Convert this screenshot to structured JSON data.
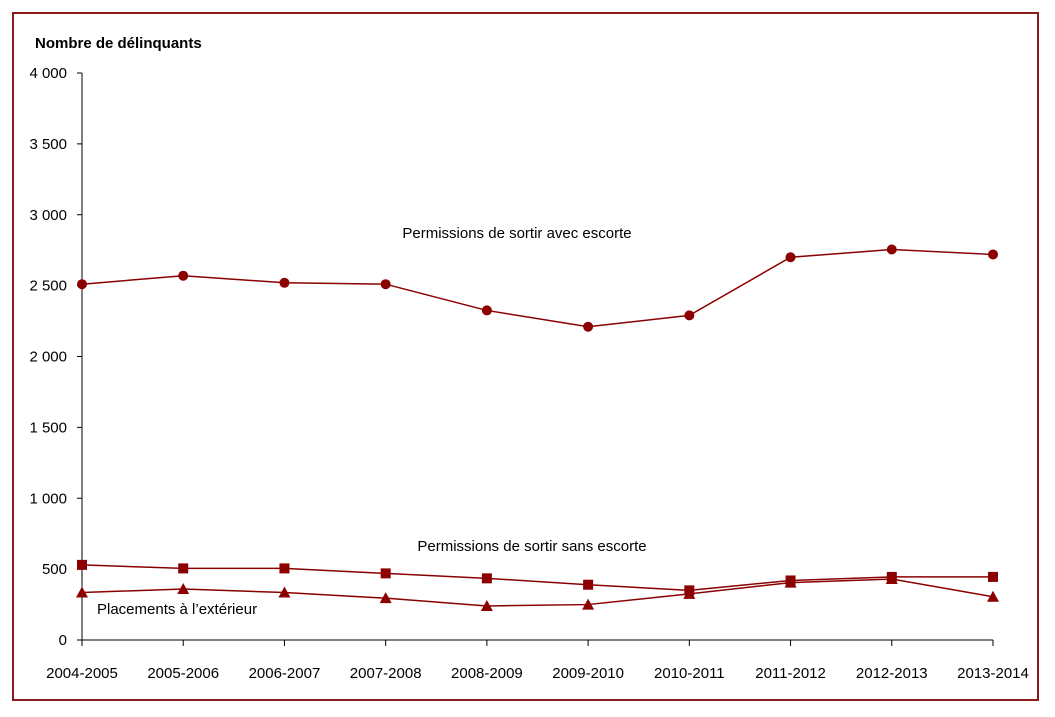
{
  "chart_data": {
    "type": "line",
    "ylabel": "Nombre de délinquants",
    "ylim": [
      0,
      4000
    ],
    "ytick_values": [
      0,
      500,
      1000,
      1500,
      2000,
      2500,
      3000,
      3500,
      4000
    ],
    "ytick_labels": [
      "0",
      "500",
      "1 000",
      "1 500",
      "2 000",
      "2 500",
      "3 000",
      "3 500",
      "4 000"
    ],
    "categories": [
      "2004-2005",
      "2005-2006",
      "2006-2007",
      "2007-2008",
      "2008-2009",
      "2009-2010",
      "2010-2011",
      "2011-2012",
      "2012-2013",
      "2013-2014"
    ],
    "grid": false,
    "legend": "none",
    "series": [
      {
        "name": "Permissions de sortir avec escorte",
        "marker": "circle",
        "color": "#8b0000",
        "values": [
          2510,
          2570,
          2520,
          2510,
          2325,
          2210,
          2290,
          2700,
          2755,
          2720
        ]
      },
      {
        "name": "Permissions de sortir sans escorte",
        "marker": "square",
        "color": "#8b0000",
        "values": [
          530,
          505,
          505,
          470,
          435,
          390,
          350,
          420,
          445,
          445
        ]
      },
      {
        "name": "Placements à l’extérieur",
        "marker": "triangle",
        "color": "#8b0000",
        "values": [
          335,
          360,
          335,
          295,
          240,
          250,
          325,
          405,
          430,
          305
        ]
      }
    ]
  }
}
